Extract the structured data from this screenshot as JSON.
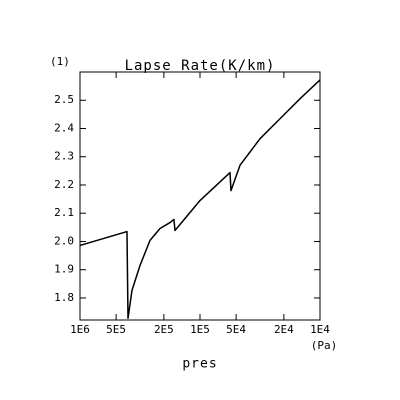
{
  "chart_data": {
    "type": "line",
    "title": "Lapse Rate(K/km)",
    "annotation": "(1)",
    "x_label": "pres",
    "x_unit": "(Pa)",
    "x": [
      1000000,
      406000,
      398000,
      368800,
      316228,
      261000,
      215400,
      177800,
      164900,
      161600,
      100000,
      56234,
      55200,
      46400,
      31600,
      21500,
      14700,
      10000
    ],
    "series": [
      {
        "name": "Lapse Rate",
        "color": "#000000",
        "values": [
          1.986,
          2.035,
          1.728,
          1.827,
          1.915,
          2.004,
          2.046,
          2.067,
          2.078,
          2.039,
          2.145,
          2.244,
          2.18,
          2.27,
          2.364,
          2.435,
          2.505,
          2.572
        ]
      }
    ],
    "xscale": "log",
    "xlim": [
      1000000,
      10000
    ],
    "xticks": [
      {
        "value": 1000000,
        "label": "1E6"
      },
      {
        "value": 500000,
        "label": "5E5"
      },
      {
        "value": 200000,
        "label": "2E5"
      },
      {
        "value": 100000,
        "label": "1E5"
      },
      {
        "value": 50000,
        "label": "5E4"
      },
      {
        "value": 20000,
        "label": "2E4"
      },
      {
        "value": 10000,
        "label": "1E4"
      }
    ],
    "ylim": [
      1.722,
      2.6
    ],
    "yticks": [
      1.8,
      1.9,
      {
        "value": 2,
        "label": "2.0"
      },
      2.1,
      2.2,
      2.3,
      2.4,
      2.5
    ],
    "grid": false
  }
}
